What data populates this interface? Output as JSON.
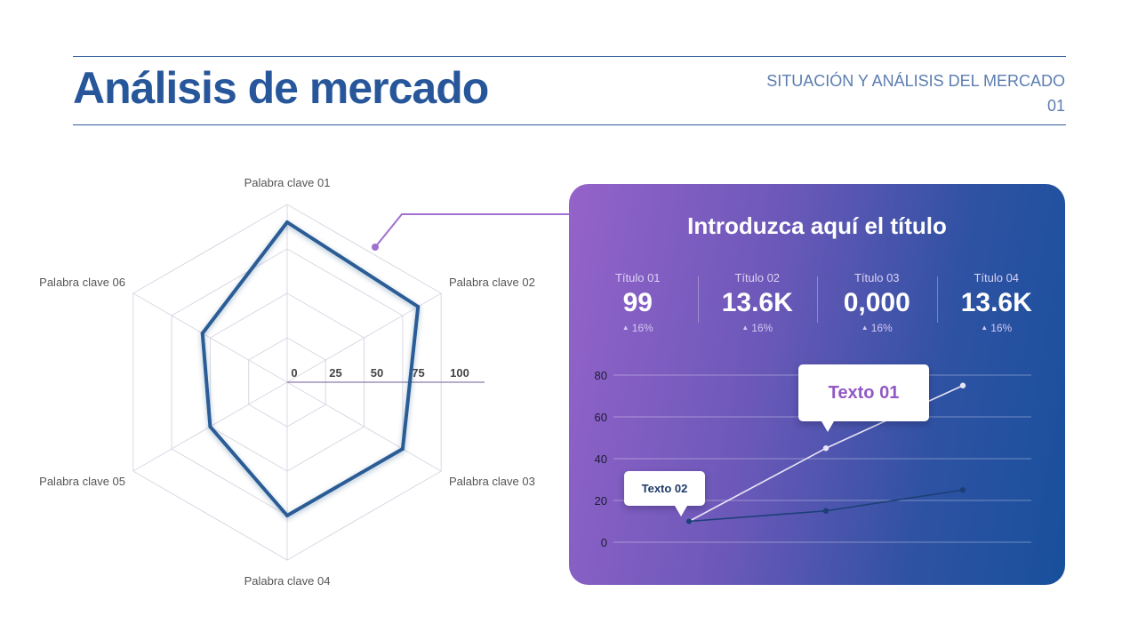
{
  "header": {
    "title": "Análisis de mercado",
    "section_title": "SITUACIÓN Y ANÁLISIS DEL MERCADO",
    "section_number": "01"
  },
  "colors": {
    "title_blue": "#27579a",
    "radar_series": "#2b5c96",
    "callout_purple": "#a06fd0",
    "card_gradient_start": "#9563ca",
    "card_gradient_end": "#17509c"
  },
  "card": {
    "title": "Introduzca aquí el título",
    "stats": [
      {
        "label": "Título 01",
        "value": "99",
        "delta": "16%",
        "delta_icon": "triangle-up-icon"
      },
      {
        "label": "Título 02",
        "value": "13.6K",
        "delta": "16%",
        "delta_icon": "triangle-up-icon"
      },
      {
        "label": "Título 03",
        "value": "0,000",
        "delta": "16%",
        "delta_icon": "triangle-up-icon"
      },
      {
        "label": "Título 04",
        "value": "13.6K",
        "delta": "16%",
        "delta_icon": "triangle-up-icon"
      }
    ],
    "callouts": [
      "Texto 01",
      "Texto 02"
    ]
  },
  "chart_data": [
    {
      "type": "radar",
      "categories": [
        "Palabra clave 01",
        "Palabra clave 02",
        "Palabra clave 03",
        "Palabra clave 04",
        "Palabra clave 05",
        "Palabra clave 06"
      ],
      "values": [
        90,
        85,
        75,
        75,
        50,
        55
      ],
      "scale_ticks": [
        "0",
        "25",
        "50",
        "75",
        "100"
      ],
      "rlim": [
        0,
        100
      ],
      "grid": true,
      "legend": "none"
    },
    {
      "type": "line",
      "y_ticks": [
        "80",
        "60",
        "40",
        "20",
        "0"
      ],
      "ylim": [
        0,
        80
      ],
      "series": [
        {
          "values": [
            10,
            45,
            75
          ],
          "color": "#e8e4f6"
        },
        {
          "values": [
            10,
            15,
            25
          ],
          "color": "#1c3f78"
        }
      ],
      "annotations": [
        "Texto 01",
        "Texto 02"
      ],
      "grid": true,
      "legend": "none"
    }
  ]
}
